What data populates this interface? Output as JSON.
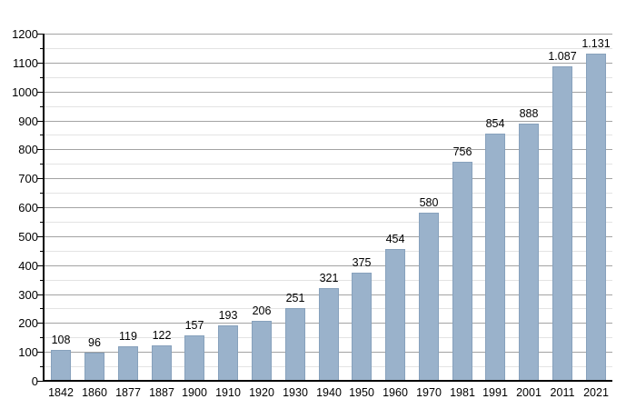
{
  "chart_data": {
    "type": "bar",
    "title": "",
    "xlabel": "",
    "ylabel": "",
    "categories": [
      "1842",
      "1860",
      "1877",
      "1887",
      "1900",
      "1910",
      "1920",
      "1930",
      "1940",
      "1950",
      "1960",
      "1970",
      "1981",
      "1991",
      "2001",
      "2011",
      "2021"
    ],
    "values": [
      108,
      96,
      119,
      122,
      157,
      193,
      206,
      251,
      321,
      375,
      454,
      580,
      756,
      854,
      888,
      1087,
      1131
    ],
    "value_labels": [
      "108",
      "96",
      "119",
      "122",
      "157",
      "193",
      "206",
      "251",
      "321",
      "375",
      "454",
      "580",
      "756",
      "854",
      "888",
      "1.087",
      "1.131"
    ],
    "ylim": [
      0,
      1200
    ],
    "y_major_step": 100,
    "y_minor_step": 50,
    "y_tick_labels": [
      "0",
      "100",
      "200",
      "300",
      "400",
      "500",
      "600",
      "700",
      "800",
      "900",
      "1000",
      "1100",
      "1200"
    ],
    "grid": true,
    "legend_position": "none",
    "colors": {
      "bar_fill": "#9ab2cb",
      "bar_border": "#87a1bc",
      "major_grid": "#a3a3a3",
      "minor_grid": "#e3e3e3",
      "axis": "#000000",
      "text": "#000000",
      "background": "#ffffff"
    }
  }
}
